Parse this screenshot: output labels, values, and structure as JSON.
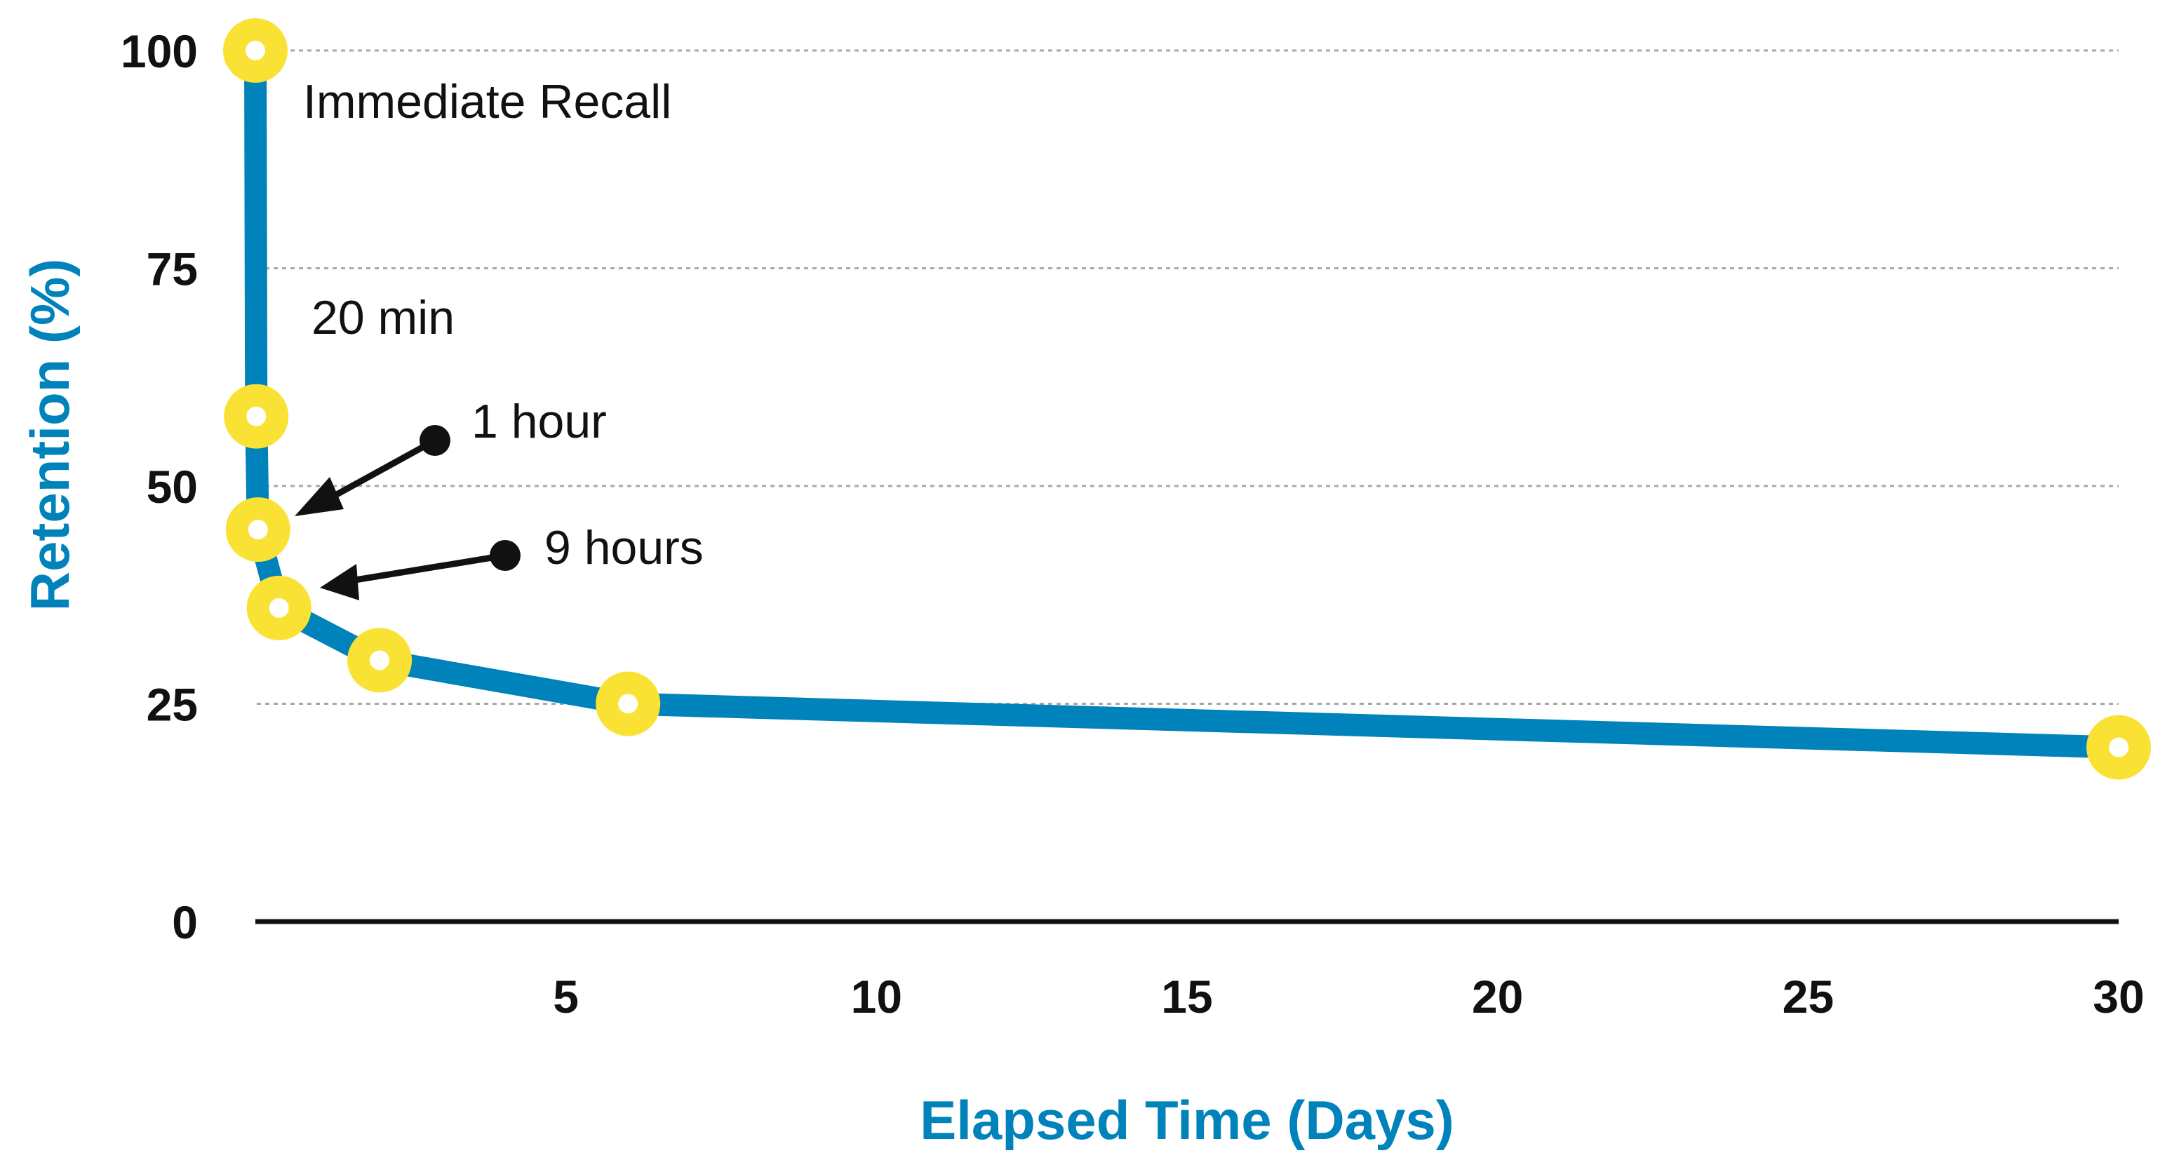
{
  "chart_data": {
    "type": "line",
    "title": "",
    "xlabel": "Elapsed Time (Days)",
    "ylabel": "Retention (%)",
    "xlim": [
      0,
      30
    ],
    "ylim": [
      0,
      100
    ],
    "x_ticks": [
      "5",
      "10",
      "15",
      "20",
      "25",
      "30"
    ],
    "y_ticks": [
      "0",
      "25",
      "50",
      "75",
      "100"
    ],
    "grid": {
      "horizontal": true,
      "style": "dotted",
      "values": [
        25,
        50,
        75,
        100
      ]
    },
    "legend": null,
    "series": [
      {
        "name": "Retention",
        "color": "#0082BA",
        "marker_color": "#F9E233",
        "points": [
          {
            "x": 0,
            "y": 100,
            "label": "Immediate Recall"
          },
          {
            "x": 0.014,
            "y": 58,
            "label": "20 min"
          },
          {
            "x": 0.042,
            "y": 45,
            "label": "1 hour"
          },
          {
            "x": 0.375,
            "y": 36,
            "label": "9 hours"
          },
          {
            "x": 2,
            "y": 30,
            "label": ""
          },
          {
            "x": 6,
            "y": 25,
            "label": ""
          },
          {
            "x": 30,
            "y": 20,
            "label": ""
          }
        ]
      }
    ],
    "annotations": [
      {
        "text": "Immediate Recall",
        "target_point": 0,
        "arrow": false
      },
      {
        "text": "20 min",
        "target_point": 1,
        "arrow": false
      },
      {
        "text": "1 hour",
        "target_point": 2,
        "arrow": true
      },
      {
        "text": "9 hours",
        "target_point": 3,
        "arrow": true
      }
    ]
  },
  "colors": {
    "line": "#0082BA",
    "marker": "#F9E233",
    "marker_hole": "#FFFFFF",
    "axis_title": "#0082BA",
    "text": "#111111",
    "grid": "#A8A8A8"
  }
}
